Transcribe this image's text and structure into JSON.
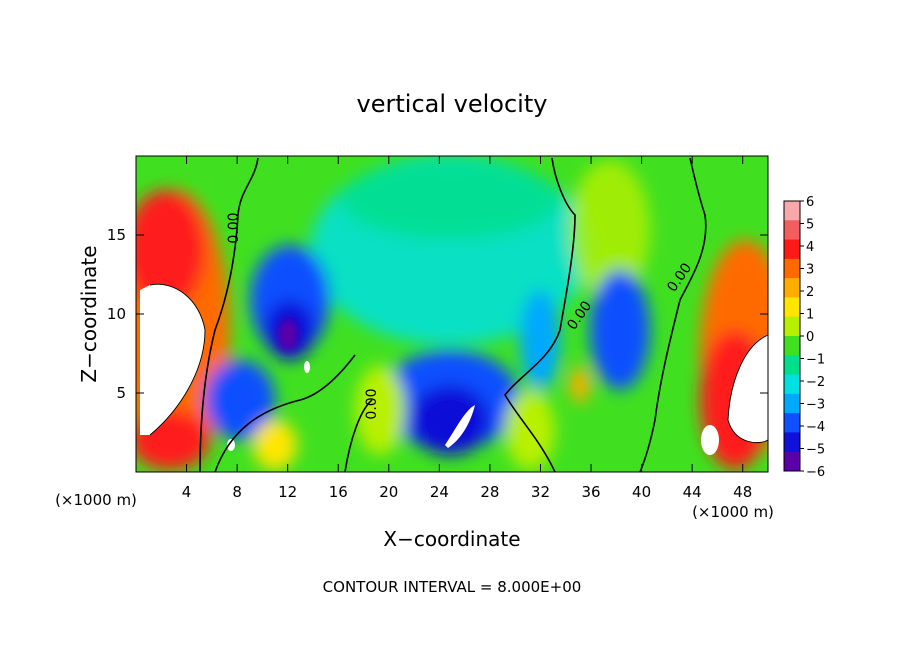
{
  "chart_data": {
    "type": "heatmap",
    "title": "vertical velocity",
    "xlabel": "X−coordinate",
    "ylabel": "Z−coordinate",
    "x_unit": "(×1000 m)",
    "y_unit": "(×1000 m)",
    "xlim": [
      0,
      50
    ],
    "ylim": [
      0,
      20
    ],
    "x_ticks": [
      4,
      8,
      12,
      16,
      20,
      24,
      28,
      32,
      36,
      40,
      44,
      48
    ],
    "y_ticks": [
      5,
      10,
      15
    ],
    "colorbar": {
      "ticks": [
        "6",
        "5",
        "4",
        "3",
        "2",
        "1",
        "0",
        "−1",
        "−2",
        "−3",
        "−4",
        "−5",
        "−6"
      ],
      "range": [
        -6,
        6
      ],
      "colors": [
        "#f7a8a8",
        "#f25d5d",
        "#ff1a1a",
        "#ff6a00",
        "#ffae00",
        "#ffe600",
        "#b8f000",
        "#40e020",
        "#00e08a",
        "#00e0e0",
        "#00a8ff",
        "#1050ff",
        "#1010d8",
        "#5a00a8"
      ]
    },
    "contour_labels": [
      "0.00",
      "0.00",
      "0.00",
      "0.00"
    ],
    "footnote": "CONTOUR INTERVAL = 8.000E+00"
  }
}
